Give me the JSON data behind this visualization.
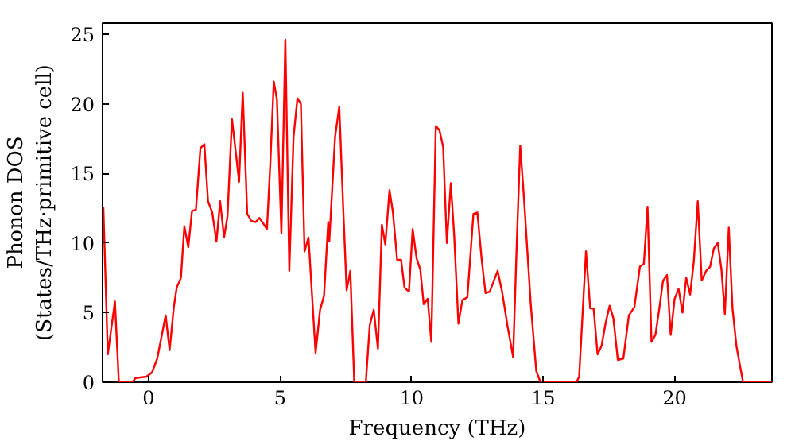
{
  "chart_data": {
    "type": "line",
    "xlabel": "Frequency (THz)",
    "ylabel": "Phonon DOS\n(States/THz·primitive cell)",
    "xlim": [
      -1.75,
      23.7
    ],
    "ylim": [
      0,
      25.8
    ],
    "xticks": [
      0,
      5,
      10,
      15,
      20
    ],
    "yticks": [
      0,
      5,
      10,
      15,
      20,
      25
    ],
    "grid": false,
    "marker": "none",
    "line_style": "solid",
    "series": [
      {
        "color": "#ff0000",
        "x": [
          -1.72,
          -1.55,
          -1.28,
          -1.13,
          -0.61,
          -0.5,
          -0.08,
          0.13,
          0.33,
          0.65,
          0.8,
          0.96,
          1.07,
          1.23,
          1.36,
          1.51,
          1.65,
          1.8,
          1.97,
          2.12,
          2.26,
          2.42,
          2.58,
          2.72,
          2.87,
          3.0,
          3.17,
          3.31,
          3.44,
          3.58,
          3.75,
          3.9,
          4.07,
          4.21,
          4.36,
          4.5,
          4.63,
          4.76,
          4.88,
          5.05,
          5.2,
          5.35,
          5.51,
          5.66,
          5.79,
          5.93,
          6.08,
          6.35,
          6.52,
          6.67,
          6.83,
          6.87,
          7.09,
          7.25,
          7.4,
          7.53,
          7.67,
          7.82,
          8.26,
          8.41,
          8.56,
          8.72,
          8.87,
          9.0,
          9.16,
          9.29,
          9.45,
          9.6,
          9.73,
          9.9,
          10.04,
          10.19,
          10.33,
          10.46,
          10.61,
          10.75,
          10.92,
          11.06,
          11.2,
          11.34,
          11.49,
          11.62,
          11.78,
          11.93,
          12.12,
          12.35,
          12.5,
          12.66,
          12.81,
          12.97,
          13.27,
          13.44,
          13.65,
          13.86,
          14.0,
          14.13,
          14.28,
          14.53,
          14.74,
          14.9,
          16.27,
          16.37,
          16.63,
          16.79,
          16.92,
          17.07,
          17.22,
          17.38,
          17.53,
          17.67,
          17.84,
          18.05,
          18.26,
          18.47,
          18.68,
          18.83,
          18.97,
          19.12,
          19.27,
          19.41,
          19.56,
          19.71,
          19.85,
          20.0,
          20.15,
          20.3,
          20.44,
          20.59,
          20.73,
          20.88,
          21.03,
          21.2,
          21.35,
          21.49,
          21.64,
          21.78,
          21.91,
          22.06,
          22.2,
          22.35,
          22.6,
          23.7
        ],
        "values": [
          12.6,
          2.0,
          5.8,
          0,
          0,
          0.3,
          0.4,
          0.7,
          1.7,
          4.8,
          2.3,
          5.4,
          6.8,
          7.5,
          11.2,
          9.7,
          12.3,
          12.4,
          16.8,
          17.1,
          13.0,
          12.2,
          10.1,
          13.0,
          10.4,
          11.9,
          18.9,
          16.6,
          14.4,
          20.8,
          12.1,
          11.6,
          11.5,
          11.8,
          11.4,
          11.0,
          15.8,
          21.6,
          20.3,
          10.7,
          24.6,
          8.0,
          17.6,
          20.4,
          20.0,
          9.4,
          10.4,
          2.1,
          5.2,
          6.2,
          11.5,
          10.1,
          17.6,
          19.8,
          12.5,
          6.6,
          8.0,
          0,
          0,
          4.1,
          5.2,
          2.4,
          11.3,
          9.9,
          13.8,
          12.2,
          8.8,
          8.8,
          6.8,
          6.5,
          11.0,
          8.9,
          8.1,
          5.6,
          6.0,
          2.9,
          18.4,
          18.1,
          16.9,
          10.0,
          14.3,
          10.5,
          4.2,
          5.9,
          6.1,
          12.1,
          12.2,
          8.9,
          6.4,
          6.5,
          8.0,
          6.5,
          4.0,
          1.8,
          10.1,
          17.0,
          13.0,
          5.6,
          0.8,
          0,
          0,
          0.4,
          9.4,
          5.3,
          5.3,
          2.0,
          2.6,
          4.3,
          5.5,
          4.6,
          1.6,
          1.7,
          4.8,
          5.4,
          8.3,
          8.5,
          12.6,
          2.9,
          3.4,
          5.2,
          7.3,
          7.7,
          3.4,
          6.0,
          6.7,
          5.0,
          7.5,
          6.3,
          8.7,
          13.0,
          7.3,
          8.0,
          8.3,
          9.6,
          10.0,
          8.1,
          4.9,
          11.1,
          5.3,
          2.6,
          0,
          0
        ]
      }
    ]
  }
}
